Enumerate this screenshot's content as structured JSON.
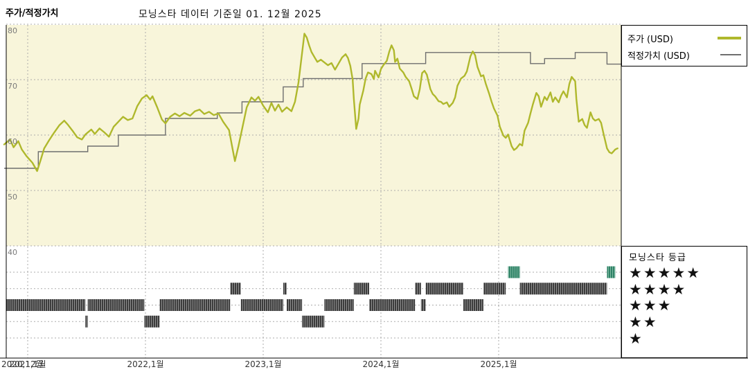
{
  "header": {
    "title": "주가/적정가치",
    "subtitle": "모닝스타 데이터 기준일 01. 12월 2025"
  },
  "legend": {
    "price_label": "주가 (USD)",
    "fair_value_label": "적정가치 (USD)"
  },
  "rating_legend": {
    "title": "모닝스타 등급",
    "rows": [
      {
        "stars": "★★★★★",
        "value": 5
      },
      {
        "stars": "★★★★",
        "value": 4
      },
      {
        "stars": "★★★",
        "value": 3
      },
      {
        "stars": "★★",
        "value": 2
      },
      {
        "stars": "★",
        "value": 1
      }
    ]
  },
  "colors": {
    "pane_bg": "#f8f5da",
    "price": "#afb82c",
    "fair_value": "#6e6e6e",
    "grid": "#ababab",
    "axis": "#000000",
    "rating_bar": "#3c3c3c",
    "rating_bar_stripe": "#9a9a9a",
    "rating_bar_5": "#2e8266",
    "rating_bar_5_stripe": "#8cc0ab",
    "y_label": "#7a7a7a",
    "x_label": "#333333"
  },
  "chart_data": {
    "type": "line",
    "title": "주가/적정가치",
    "subtitle": "모닝스타 데이터 기준일 01. 12월 2025",
    "x_axis": {
      "range": [
        2020.8,
        2026.05
      ],
      "ticks": [
        {
          "t": 2020.8,
          "label": "2020,12월",
          "align": "left",
          "grid": false
        },
        {
          "t": 2021.0,
          "label": "2021,1월",
          "grid": true
        },
        {
          "t": 2022.0,
          "label": "2022,1월",
          "grid": true
        },
        {
          "t": 2023.0,
          "label": "2023,1월",
          "grid": true
        },
        {
          "t": 2024.0,
          "label": "2024,1월",
          "grid": true
        },
        {
          "t": 2025.0,
          "label": "2025,1월",
          "grid": true
        }
      ]
    },
    "y_axis": {
      "range": [
        40,
        80
      ],
      "ticks": [
        80,
        70,
        60,
        50,
        40
      ]
    },
    "series": [
      {
        "name": "주가 (USD)",
        "type": "line",
        "color": "#afb82c",
        "points": [
          [
            2020.8,
            58.3
          ],
          [
            2020.85,
            59.2
          ],
          [
            2020.88,
            57.8
          ],
          [
            2020.92,
            58.9
          ],
          [
            2020.95,
            57.4
          ],
          [
            2020.99,
            56.2
          ],
          [
            2021.04,
            55.0
          ],
          [
            2021.08,
            53.5
          ],
          [
            2021.11,
            55.5
          ],
          [
            2021.14,
            57.6
          ],
          [
            2021.18,
            59.0
          ],
          [
            2021.22,
            60.3
          ],
          [
            2021.27,
            61.8
          ],
          [
            2021.31,
            62.6
          ],
          [
            2021.34,
            61.9
          ],
          [
            2021.38,
            60.8
          ],
          [
            2021.42,
            59.6
          ],
          [
            2021.46,
            59.2
          ],
          [
            2021.49,
            60.1
          ],
          [
            2021.54,
            61.0
          ],
          [
            2021.57,
            60.2
          ],
          [
            2021.61,
            61.2
          ],
          [
            2021.65,
            60.5
          ],
          [
            2021.69,
            59.7
          ],
          [
            2021.73,
            61.5
          ],
          [
            2021.77,
            62.4
          ],
          [
            2021.81,
            63.3
          ],
          [
            2021.85,
            62.7
          ],
          [
            2021.89,
            63.0
          ],
          [
            2021.93,
            65.2
          ],
          [
            2021.97,
            66.6
          ],
          [
            2022.01,
            67.2
          ],
          [
            2022.04,
            66.4
          ],
          [
            2022.06,
            67.0
          ],
          [
            2022.1,
            65.0
          ],
          [
            2022.14,
            62.8
          ],
          [
            2022.17,
            62.1
          ],
          [
            2022.21,
            63.3
          ],
          [
            2022.25,
            63.9
          ],
          [
            2022.29,
            63.4
          ],
          [
            2022.33,
            64.0
          ],
          [
            2022.38,
            63.5
          ],
          [
            2022.42,
            64.3
          ],
          [
            2022.46,
            64.6
          ],
          [
            2022.5,
            63.8
          ],
          [
            2022.54,
            64.2
          ],
          [
            2022.58,
            63.6
          ],
          [
            2022.62,
            63.9
          ],
          [
            2022.66,
            62.4
          ],
          [
            2022.71,
            60.9
          ],
          [
            2022.74,
            57.5
          ],
          [
            2022.76,
            55.3
          ],
          [
            2022.79,
            58.0
          ],
          [
            2022.83,
            62.0
          ],
          [
            2022.86,
            65.0
          ],
          [
            2022.9,
            66.8
          ],
          [
            2022.93,
            66.2
          ],
          [
            2022.96,
            66.9
          ],
          [
            2023.0,
            65.3
          ],
          [
            2023.04,
            64.1
          ],
          [
            2023.07,
            65.8
          ],
          [
            2023.1,
            64.4
          ],
          [
            2023.13,
            65.5
          ],
          [
            2023.16,
            64.2
          ],
          [
            2023.2,
            65.0
          ],
          [
            2023.24,
            64.3
          ],
          [
            2023.27,
            66.0
          ],
          [
            2023.3,
            69.5
          ],
          [
            2023.32,
            73.0
          ],
          [
            2023.34,
            76.5
          ],
          [
            2023.35,
            78.3
          ],
          [
            2023.37,
            77.6
          ],
          [
            2023.39,
            76.2
          ],
          [
            2023.41,
            75.0
          ],
          [
            2023.44,
            73.9
          ],
          [
            2023.46,
            73.2
          ],
          [
            2023.49,
            73.6
          ],
          [
            2023.52,
            73.1
          ],
          [
            2023.55,
            72.6
          ],
          [
            2023.58,
            73.0
          ],
          [
            2023.61,
            71.8
          ],
          [
            2023.64,
            72.9
          ],
          [
            2023.67,
            74.0
          ],
          [
            2023.7,
            74.6
          ],
          [
            2023.72,
            73.9
          ],
          [
            2023.74,
            72.5
          ],
          [
            2023.76,
            70.0
          ],
          [
            2023.77,
            66.5
          ],
          [
            2023.79,
            61.1
          ],
          [
            2023.81,
            63.0
          ],
          [
            2023.82,
            65.5
          ],
          [
            2023.85,
            68.0
          ],
          [
            2023.87,
            70.2
          ],
          [
            2023.89,
            71.3
          ],
          [
            2023.92,
            71.0
          ],
          [
            2023.94,
            70.1
          ],
          [
            2023.95,
            71.6
          ],
          [
            2023.98,
            70.4
          ],
          [
            2024.0,
            71.9
          ],
          [
            2024.02,
            72.6
          ],
          [
            2024.05,
            73.4
          ],
          [
            2024.07,
            75.0
          ],
          [
            2024.09,
            76.2
          ],
          [
            2024.11,
            75.3
          ],
          [
            2024.12,
            73.2
          ],
          [
            2024.14,
            73.8
          ],
          [
            2024.16,
            72.0
          ],
          [
            2024.19,
            71.3
          ],
          [
            2024.21,
            70.5
          ],
          [
            2024.24,
            69.7
          ],
          [
            2024.26,
            68.4
          ],
          [
            2024.28,
            67.0
          ],
          [
            2024.31,
            66.5
          ],
          [
            2024.33,
            68.3
          ],
          [
            2024.35,
            71.2
          ],
          [
            2024.37,
            71.6
          ],
          [
            2024.39,
            70.9
          ],
          [
            2024.42,
            68.3
          ],
          [
            2024.44,
            67.4
          ],
          [
            2024.46,
            67.0
          ],
          [
            2024.49,
            66.1
          ],
          [
            2024.51,
            66.0
          ],
          [
            2024.53,
            65.6
          ],
          [
            2024.56,
            65.9
          ],
          [
            2024.58,
            65.1
          ],
          [
            2024.61,
            65.8
          ],
          [
            2024.63,
            66.8
          ],
          [
            2024.65,
            68.9
          ],
          [
            2024.68,
            70.2
          ],
          [
            2024.71,
            70.7
          ],
          [
            2024.73,
            71.5
          ],
          [
            2024.76,
            74.2
          ],
          [
            2024.78,
            75.1
          ],
          [
            2024.8,
            74.4
          ],
          [
            2024.82,
            72.3
          ],
          [
            2024.85,
            70.6
          ],
          [
            2024.87,
            70.8
          ],
          [
            2024.89,
            69.3
          ],
          [
            2024.92,
            67.4
          ],
          [
            2024.94,
            66.0
          ],
          [
            2024.96,
            64.8
          ],
          [
            2024.99,
            63.5
          ],
          [
            2025.01,
            61.5
          ],
          [
            2025.04,
            59.9
          ],
          [
            2025.06,
            59.5
          ],
          [
            2025.08,
            60.1
          ],
          [
            2025.11,
            58.0
          ],
          [
            2025.13,
            57.3
          ],
          [
            2025.15,
            57.6
          ],
          [
            2025.18,
            58.4
          ],
          [
            2025.2,
            58.1
          ],
          [
            2025.22,
            60.8
          ],
          [
            2025.25,
            62.2
          ],
          [
            2025.27,
            63.9
          ],
          [
            2025.29,
            65.5
          ],
          [
            2025.32,
            67.6
          ],
          [
            2025.34,
            67.0
          ],
          [
            2025.36,
            65.1
          ],
          [
            2025.39,
            66.9
          ],
          [
            2025.41,
            66.3
          ],
          [
            2025.44,
            67.7
          ],
          [
            2025.46,
            66.0
          ],
          [
            2025.48,
            66.8
          ],
          [
            2025.51,
            65.9
          ],
          [
            2025.53,
            67.1
          ],
          [
            2025.55,
            67.9
          ],
          [
            2025.58,
            66.8
          ],
          [
            2025.6,
            69.2
          ],
          [
            2025.62,
            70.5
          ],
          [
            2025.65,
            69.7
          ],
          [
            2025.66,
            66.5
          ],
          [
            2025.68,
            62.4
          ],
          [
            2025.71,
            62.9
          ],
          [
            2025.73,
            61.8
          ],
          [
            2025.75,
            61.3
          ],
          [
            2025.78,
            64.1
          ],
          [
            2025.8,
            63.0
          ],
          [
            2025.82,
            62.6
          ],
          [
            2025.85,
            62.9
          ],
          [
            2025.87,
            62.2
          ],
          [
            2025.89,
            60.3
          ],
          [
            2025.92,
            57.6
          ],
          [
            2025.94,
            56.9
          ],
          [
            2025.96,
            56.7
          ],
          [
            2025.99,
            57.4
          ],
          [
            2026.01,
            57.6
          ]
        ]
      },
      {
        "name": "적정가치 (USD)",
        "type": "step",
        "color": "#6e6e6e",
        "t_end": 2026.05,
        "points": [
          [
            2020.8,
            54.0
          ],
          [
            2021.09,
            57.0
          ],
          [
            2021.51,
            58.0
          ],
          [
            2021.77,
            60.0
          ],
          [
            2022.17,
            63.0
          ],
          [
            2022.61,
            64.0
          ],
          [
            2022.82,
            66.0
          ],
          [
            2023.17,
            68.7
          ],
          [
            2023.34,
            70.2
          ],
          [
            2023.84,
            72.9
          ],
          [
            2024.38,
            74.9
          ],
          [
            2025.27,
            72.9
          ],
          [
            2025.39,
            73.8
          ],
          [
            2025.65,
            74.9
          ],
          [
            2025.92,
            72.8
          ]
        ]
      }
    ],
    "rating_timeline": {
      "label": "모닝스타 등급",
      "levels": [
        5,
        4,
        3,
        2,
        1
      ],
      "segments": [
        [
          2020.82,
          2021.49,
          3
        ],
        [
          2021.49,
          2021.51,
          2
        ],
        [
          2021.51,
          2021.99,
          3
        ],
        [
          2021.99,
          2022.12,
          2
        ],
        [
          2022.12,
          2022.72,
          3
        ],
        [
          2022.72,
          2022.81,
          4
        ],
        [
          2022.81,
          2023.17,
          3
        ],
        [
          2023.17,
          2023.2,
          4
        ],
        [
          2023.2,
          2023.33,
          3
        ],
        [
          2023.33,
          2023.52,
          2
        ],
        [
          2023.52,
          2023.77,
          3
        ],
        [
          2023.77,
          2023.9,
          4
        ],
        [
          2023.9,
          2024.29,
          3
        ],
        [
          2024.29,
          2024.34,
          4
        ],
        [
          2024.34,
          2024.38,
          3
        ],
        [
          2024.38,
          2024.7,
          4
        ],
        [
          2024.7,
          2024.87,
          3
        ],
        [
          2024.87,
          2025.06,
          4
        ],
        [
          2025.08,
          2025.18,
          5
        ],
        [
          2025.18,
          2025.92,
          4
        ],
        [
          2025.92,
          2025.99,
          5
        ]
      ]
    }
  }
}
